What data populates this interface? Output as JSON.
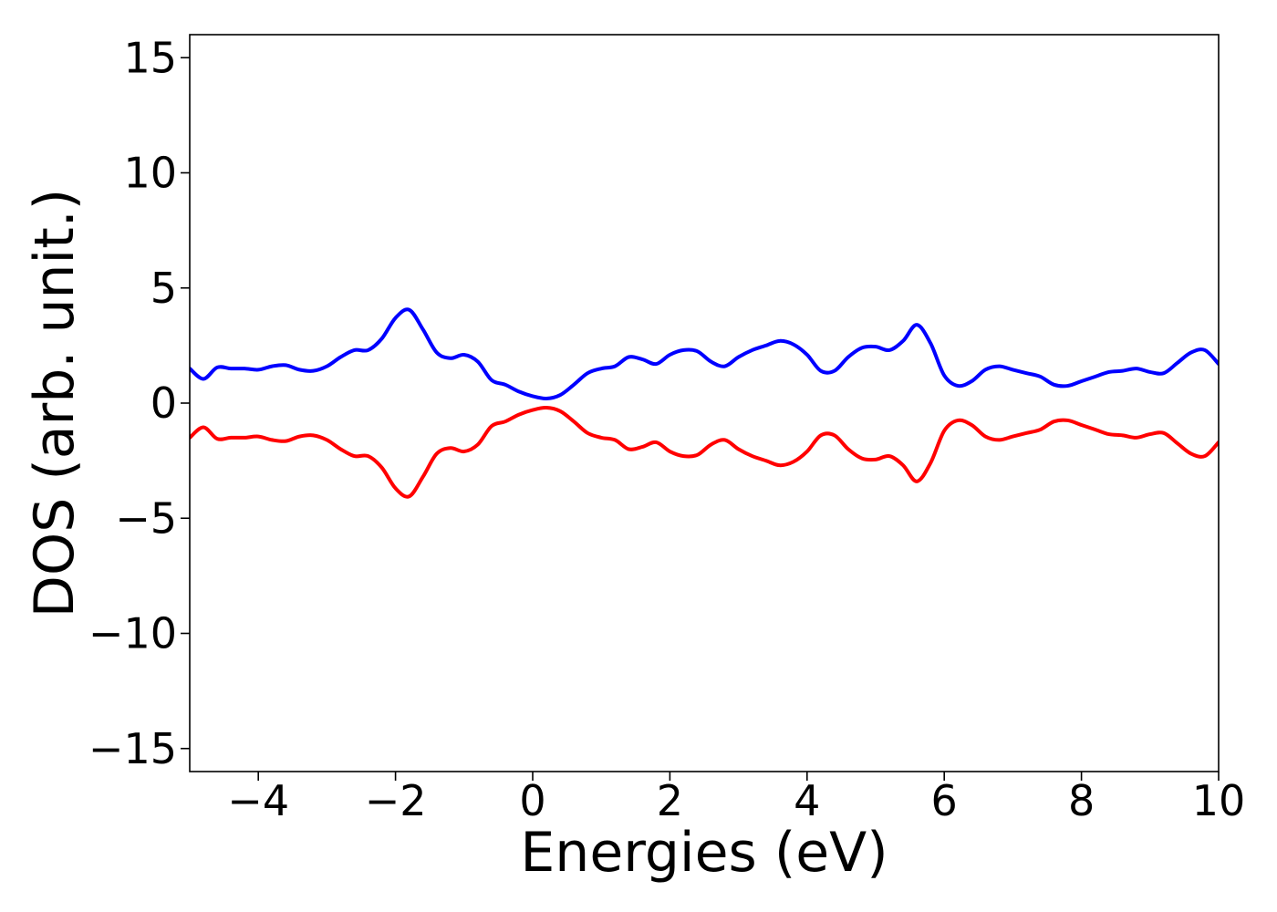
{
  "chart_data": {
    "type": "line",
    "title": "",
    "xlabel": "Energies (eV)",
    "ylabel": "DOS (arb. unit.)",
    "xlim": [
      -5,
      10
    ],
    "ylim": [
      -16,
      16
    ],
    "xticks": [
      -4,
      -2,
      0,
      2,
      4,
      6,
      8,
      10
    ],
    "xtick_labels": [
      "−4",
      "−2",
      "0",
      "2",
      "4",
      "6",
      "8",
      "10"
    ],
    "yticks": [
      -15,
      -10,
      -5,
      0,
      5,
      10,
      15
    ],
    "ytick_labels": [
      "−15",
      "−10",
      "−5",
      "0",
      "5",
      "10",
      "15"
    ],
    "grid": false,
    "series": [
      {
        "color": "#0000ff",
        "points": [
          [
            -5.0,
            1.5
          ],
          [
            -4.8,
            1.05
          ],
          [
            -4.6,
            1.55
          ],
          [
            -4.4,
            1.5
          ],
          [
            -4.2,
            1.5
          ],
          [
            -4.0,
            1.45
          ],
          [
            -3.8,
            1.6
          ],
          [
            -3.6,
            1.65
          ],
          [
            -3.4,
            1.45
          ],
          [
            -3.2,
            1.4
          ],
          [
            -3.0,
            1.6
          ],
          [
            -2.8,
            2.0
          ],
          [
            -2.6,
            2.3
          ],
          [
            -2.4,
            2.3
          ],
          [
            -2.2,
            2.8
          ],
          [
            -2.0,
            3.7
          ],
          [
            -1.8,
            4.05
          ],
          [
            -1.6,
            3.2
          ],
          [
            -1.4,
            2.2
          ],
          [
            -1.2,
            1.95
          ],
          [
            -1.0,
            2.1
          ],
          [
            -0.8,
            1.8
          ],
          [
            -0.6,
            1.0
          ],
          [
            -0.4,
            0.8
          ],
          [
            -0.2,
            0.5
          ],
          [
            0.0,
            0.3
          ],
          [
            0.2,
            0.2
          ],
          [
            0.4,
            0.35
          ],
          [
            0.6,
            0.8
          ],
          [
            0.8,
            1.3
          ],
          [
            1.0,
            1.5
          ],
          [
            1.2,
            1.6
          ],
          [
            1.4,
            2.0
          ],
          [
            1.6,
            1.9
          ],
          [
            1.8,
            1.7
          ],
          [
            2.0,
            2.1
          ],
          [
            2.2,
            2.3
          ],
          [
            2.4,
            2.25
          ],
          [
            2.6,
            1.8
          ],
          [
            2.8,
            1.6
          ],
          [
            3.0,
            2.0
          ],
          [
            3.2,
            2.3
          ],
          [
            3.4,
            2.5
          ],
          [
            3.6,
            2.7
          ],
          [
            3.8,
            2.55
          ],
          [
            4.0,
            2.1
          ],
          [
            4.2,
            1.4
          ],
          [
            4.4,
            1.4
          ],
          [
            4.6,
            2.0
          ],
          [
            4.8,
            2.4
          ],
          [
            5.0,
            2.45
          ],
          [
            5.2,
            2.3
          ],
          [
            5.4,
            2.7
          ],
          [
            5.6,
            3.4
          ],
          [
            5.8,
            2.6
          ],
          [
            6.0,
            1.2
          ],
          [
            6.2,
            0.75
          ],
          [
            6.4,
            0.95
          ],
          [
            6.6,
            1.45
          ],
          [
            6.8,
            1.6
          ],
          [
            7.0,
            1.45
          ],
          [
            7.2,
            1.3
          ],
          [
            7.4,
            1.15
          ],
          [
            7.6,
            0.8
          ],
          [
            7.8,
            0.75
          ],
          [
            8.0,
            0.95
          ],
          [
            8.2,
            1.15
          ],
          [
            8.4,
            1.35
          ],
          [
            8.6,
            1.4
          ],
          [
            8.8,
            1.5
          ],
          [
            9.0,
            1.35
          ],
          [
            9.2,
            1.3
          ],
          [
            9.4,
            1.75
          ],
          [
            9.6,
            2.2
          ],
          [
            9.8,
            2.3
          ],
          [
            10.0,
            1.7
          ]
        ]
      },
      {
        "color": "#ff0000",
        "points": [
          [
            -5.0,
            -1.5
          ],
          [
            -4.8,
            -1.05
          ],
          [
            -4.6,
            -1.55
          ],
          [
            -4.4,
            -1.5
          ],
          [
            -4.2,
            -1.5
          ],
          [
            -4.0,
            -1.45
          ],
          [
            -3.8,
            -1.6
          ],
          [
            -3.6,
            -1.65
          ],
          [
            -3.4,
            -1.45
          ],
          [
            -3.2,
            -1.4
          ],
          [
            -3.0,
            -1.6
          ],
          [
            -2.8,
            -2.0
          ],
          [
            -2.6,
            -2.3
          ],
          [
            -2.4,
            -2.3
          ],
          [
            -2.2,
            -2.8
          ],
          [
            -2.0,
            -3.7
          ],
          [
            -1.8,
            -4.05
          ],
          [
            -1.6,
            -3.2
          ],
          [
            -1.4,
            -2.2
          ],
          [
            -1.2,
            -1.95
          ],
          [
            -1.0,
            -2.1
          ],
          [
            -0.8,
            -1.8
          ],
          [
            -0.6,
            -1.0
          ],
          [
            -0.4,
            -0.8
          ],
          [
            -0.2,
            -0.5
          ],
          [
            0.0,
            -0.3
          ],
          [
            0.2,
            -0.2
          ],
          [
            0.4,
            -0.35
          ],
          [
            0.6,
            -0.8
          ],
          [
            0.8,
            -1.3
          ],
          [
            1.0,
            -1.5
          ],
          [
            1.2,
            -1.6
          ],
          [
            1.4,
            -2.0
          ],
          [
            1.6,
            -1.9
          ],
          [
            1.8,
            -1.7
          ],
          [
            2.0,
            -2.1
          ],
          [
            2.2,
            -2.3
          ],
          [
            2.4,
            -2.25
          ],
          [
            2.6,
            -1.8
          ],
          [
            2.8,
            -1.6
          ],
          [
            3.0,
            -2.0
          ],
          [
            3.2,
            -2.3
          ],
          [
            3.4,
            -2.5
          ],
          [
            3.6,
            -2.7
          ],
          [
            3.8,
            -2.55
          ],
          [
            4.0,
            -2.1
          ],
          [
            4.2,
            -1.4
          ],
          [
            4.4,
            -1.4
          ],
          [
            4.6,
            -2.0
          ],
          [
            4.8,
            -2.4
          ],
          [
            5.0,
            -2.45
          ],
          [
            5.2,
            -2.3
          ],
          [
            5.4,
            -2.7
          ],
          [
            5.6,
            -3.4
          ],
          [
            5.8,
            -2.6
          ],
          [
            6.0,
            -1.2
          ],
          [
            6.2,
            -0.75
          ],
          [
            6.4,
            -0.95
          ],
          [
            6.6,
            -1.45
          ],
          [
            6.8,
            -1.6
          ],
          [
            7.0,
            -1.45
          ],
          [
            7.2,
            -1.3
          ],
          [
            7.4,
            -1.15
          ],
          [
            7.6,
            -0.8
          ],
          [
            7.8,
            -0.75
          ],
          [
            8.0,
            -0.95
          ],
          [
            8.2,
            -1.15
          ],
          [
            8.4,
            -1.35
          ],
          [
            8.6,
            -1.4
          ],
          [
            8.8,
            -1.5
          ],
          [
            9.0,
            -1.35
          ],
          [
            9.2,
            -1.3
          ],
          [
            9.4,
            -1.75
          ],
          [
            9.6,
            -2.2
          ],
          [
            9.8,
            -2.3
          ],
          [
            10.0,
            -1.7
          ]
        ]
      }
    ]
  }
}
